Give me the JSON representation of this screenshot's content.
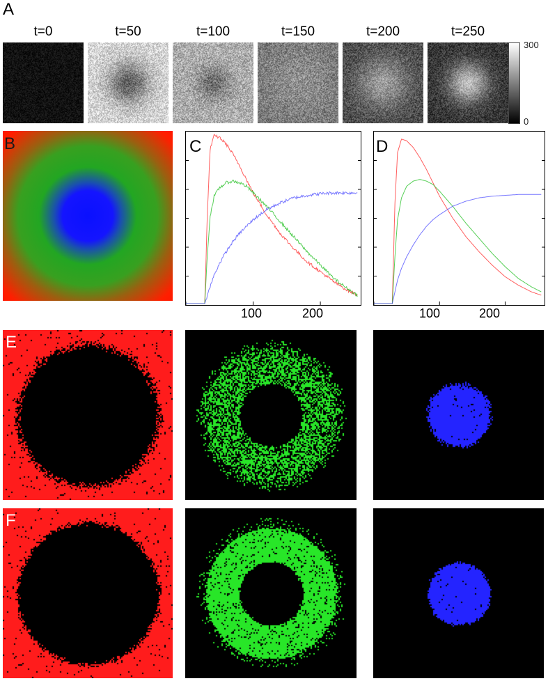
{
  "figure": {
    "panel_labels": {
      "A": "A",
      "B": "B",
      "C": "C",
      "D": "D",
      "E": "E",
      "F": "F"
    },
    "panel_a": {
      "times": [
        "t=0",
        "t=50",
        "t=100",
        "t=150",
        "t=200",
        "t=250"
      ],
      "colorbar": {
        "max_label": "300",
        "min_label": "0",
        "colormap": "grayscale"
      }
    },
    "panel_b": {
      "colors": [
        "#1010ff",
        "#22a622",
        "#ff1f00"
      ],
      "description_colors": "blue-center green-ring red-outer"
    },
    "colors": {
      "red": "#ff2a2a",
      "green": "#1fbf1f",
      "blue": "#4a4aff"
    }
  },
  "chart_data": [
    {
      "panel": "C",
      "type": "line",
      "xlim": [
        0,
        260
      ],
      "ylim": [
        0,
        1
      ],
      "x_ticks": [
        100,
        200
      ],
      "x_tick_labels": [
        "100",
        "200"
      ],
      "series": [
        {
          "color": "#ff2a2a",
          "x": [
            0,
            28,
            32,
            36,
            42,
            50,
            60,
            70,
            80,
            90,
            100,
            120,
            140,
            160,
            180,
            200,
            220,
            240,
            255
          ],
          "y": [
            0,
            0,
            0.55,
            0.92,
            1.0,
            0.99,
            0.95,
            0.89,
            0.82,
            0.74,
            0.66,
            0.53,
            0.42,
            0.33,
            0.25,
            0.19,
            0.13,
            0.08,
            0.05
          ],
          "noisy": true
        },
        {
          "color": "#1fbf1f",
          "x": [
            0,
            28,
            32,
            36,
            42,
            50,
            60,
            70,
            80,
            90,
            100,
            120,
            140,
            160,
            180,
            200,
            220,
            240,
            255
          ],
          "y": [
            0,
            0,
            0.3,
            0.52,
            0.64,
            0.69,
            0.72,
            0.73,
            0.72,
            0.7,
            0.66,
            0.58,
            0.49,
            0.4,
            0.31,
            0.23,
            0.15,
            0.09,
            0.05
          ],
          "noisy": true
        },
        {
          "color": "#4a4aff",
          "x": [
            0,
            28,
            32,
            36,
            42,
            50,
            60,
            70,
            80,
            90,
            100,
            120,
            140,
            160,
            180,
            200,
            220,
            240,
            255
          ],
          "y": [
            0,
            0,
            0.05,
            0.1,
            0.17,
            0.24,
            0.31,
            0.37,
            0.42,
            0.46,
            0.5,
            0.56,
            0.6,
            0.63,
            0.645,
            0.655,
            0.66,
            0.66,
            0.66
          ],
          "noisy": true
        }
      ]
    },
    {
      "panel": "D",
      "type": "line",
      "xlim": [
        0,
        260
      ],
      "ylim": [
        0,
        1
      ],
      "x_ticks": [
        100,
        200
      ],
      "x_tick_labels": [
        "100",
        "200"
      ],
      "series": [
        {
          "color": "#ff2a2a",
          "x": [
            0,
            28,
            32,
            36,
            42,
            50,
            60,
            70,
            80,
            90,
            100,
            120,
            140,
            160,
            180,
            200,
            220,
            240,
            255
          ],
          "y": [
            0,
            0,
            0.6,
            0.9,
            0.98,
            0.97,
            0.93,
            0.87,
            0.8,
            0.72,
            0.64,
            0.51,
            0.4,
            0.31,
            0.23,
            0.16,
            0.11,
            0.07,
            0.05
          ],
          "noisy": false
        },
        {
          "color": "#1fbf1f",
          "x": [
            0,
            28,
            32,
            36,
            42,
            50,
            60,
            70,
            80,
            90,
            100,
            120,
            140,
            160,
            180,
            200,
            220,
            240,
            255
          ],
          "y": [
            0,
            0,
            0.28,
            0.5,
            0.63,
            0.7,
            0.73,
            0.74,
            0.73,
            0.71,
            0.67,
            0.58,
            0.48,
            0.39,
            0.3,
            0.22,
            0.15,
            0.1,
            0.07
          ],
          "noisy": false
        },
        {
          "color": "#4a4aff",
          "x": [
            0,
            28,
            32,
            36,
            42,
            50,
            60,
            70,
            80,
            90,
            100,
            120,
            140,
            160,
            180,
            200,
            220,
            240,
            255
          ],
          "y": [
            0,
            0,
            0.07,
            0.14,
            0.21,
            0.28,
            0.35,
            0.41,
            0.46,
            0.5,
            0.53,
            0.58,
            0.61,
            0.63,
            0.64,
            0.645,
            0.65,
            0.65,
            0.65
          ],
          "noisy": false
        }
      ]
    }
  ]
}
